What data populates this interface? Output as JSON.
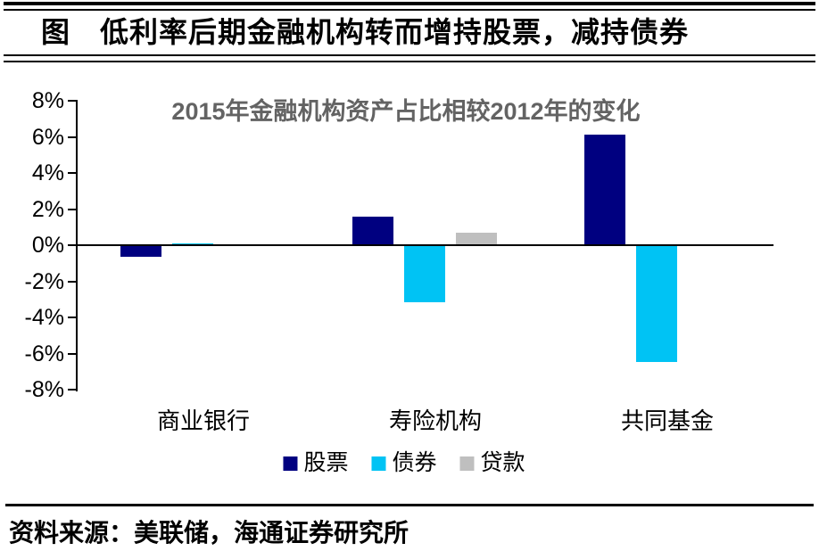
{
  "header": {
    "title": "图　低利率后期金融机构转而增持股票，减持债券"
  },
  "footer": {
    "source": "资料来源：美联储，海通证券研究所"
  },
  "chart_data": {
    "type": "bar",
    "title": "2015年金融机构资产占比相较2012年的变化",
    "categories": [
      "商业银行",
      "寿险机构",
      "共同基金"
    ],
    "series": [
      {
        "name": "股票",
        "color": "#000080",
        "values": [
          -0.6,
          1.6,
          6.1
        ]
      },
      {
        "name": "债券",
        "color": "#00C3F4",
        "values": [
          0.1,
          -3.1,
          -6.4
        ]
      },
      {
        "name": "贷款",
        "color": "#BFBFBF",
        "values": [
          0.0,
          0.7,
          0.0
        ]
      }
    ],
    "ylim": [
      -8,
      8
    ],
    "ytick_step": 2,
    "ytick_labels": [
      "8%",
      "6%",
      "4%",
      "2%",
      "0%",
      "-2%",
      "-4%",
      "-6%",
      "-8%"
    ],
    "value_unit": "percent",
    "legend_position": "bottom",
    "grid": false,
    "axis_color": "#000000",
    "background_color": "#FFFFFF",
    "subtitle_color": "#636363"
  }
}
